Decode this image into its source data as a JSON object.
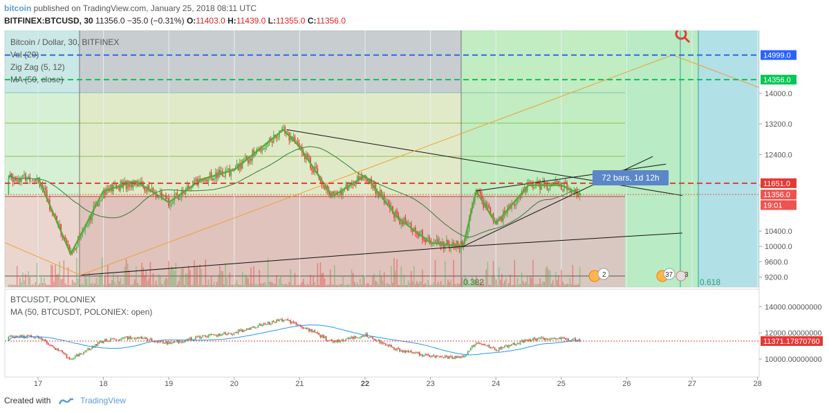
{
  "header": {
    "author": "bitcoin",
    "published_text": "published on TradingView.com, January 25, 2018 08:11 UTC",
    "symbol": "BITFINEX:BTCUSD, 30",
    "last": "11356.0",
    "change": "−35.0 (−0.31%)",
    "open_label": "O:",
    "open": "11403.0",
    "high_label": "H:",
    "high": "11439.0",
    "low_label": "L:",
    "low": "11355.0",
    "close_label": "C:",
    "close": "11356.0"
  },
  "main_pane": {
    "legend": [
      "Bitcoin / Dollar, 30, BITFINEX",
      "Vol (20)",
      "Zig Zag (5, 12)",
      "MA (50, close)"
    ],
    "price_ticks": [
      "14000.0",
      "13200.0",
      "12400.0",
      "11600.0",
      "10400.0",
      "10000.0",
      "9600.0",
      "9200.0"
    ],
    "price_tags": [
      {
        "text": "14999.0",
        "color": "#2962ff",
        "price": 14999
      },
      {
        "text": "14356.0",
        "color": "#00c853",
        "price": 14356
      },
      {
        "text": "11651.0",
        "color": "#e53935",
        "price": 11651
      },
      {
        "text": "11356.0",
        "color": "#ef5350",
        "price": 11356
      },
      {
        "text": "19:01",
        "color": "#ef5350",
        "price": 11080
      }
    ],
    "bars_label": "72 bars, 1d 12h",
    "fib_labels": [
      "0.382",
      "0.618"
    ],
    "event_badges": [
      "2",
      "3",
      "37",
      "3"
    ]
  },
  "sub_pane": {
    "legend": [
      "BTCUSDT, POLONIEX",
      "MA (50, BTCUSDT, POLONIEX: open)"
    ],
    "price_ticks": [
      "14000.00000000",
      "12000.00000000",
      "10000.00000000"
    ],
    "price_tag": "11371.17870760"
  },
  "x_axis": {
    "labels": [
      "17",
      "18",
      "19",
      "20",
      "21",
      "22",
      "23",
      "24",
      "25",
      "26",
      "27",
      "28"
    ],
    "bold_label": "22"
  },
  "footer": {
    "created_with": "Created with",
    "brand": "TradingView"
  },
  "colors": {
    "up": "#4caf50",
    "down": "#e53935",
    "zigzag": "#5fa83a",
    "ma": "#2e7d32",
    "accent": "#5b9bd5"
  },
  "chart_data": {
    "type": "line",
    "title": "Bitcoin / Dollar, 30, BITFINEX",
    "x": [
      "17",
      "17.5",
      "18",
      "18.5",
      "19",
      "19.5",
      "20",
      "20.5",
      "20.75",
      "21",
      "21.5",
      "22",
      "22.5",
      "23",
      "23.5",
      "23.7",
      "24",
      "24.5",
      "25",
      "25.3"
    ],
    "series": [
      {
        "name": "BITFINEX:BTCUSD",
        "values": [
          11800,
          9800,
          11450,
          11700,
          11150,
          11750,
          12000,
          12700,
          13050,
          12600,
          11300,
          11850,
          10750,
          10100,
          10000,
          11450,
          10600,
          11600,
          11600,
          11356
        ]
      }
    ],
    "ylim": [
      9100,
      15300
    ],
    "price_levels": [
      14999,
      14356,
      11651,
      11356
    ],
    "sub_series": [
      {
        "name": "BTCUSDT, POLONIEX",
        "values": [
          11700,
          10000,
          11400,
          11700,
          11200,
          11700,
          12000,
          12700,
          13000,
          12600,
          11300,
          11850,
          10700,
          10200,
          10100,
          11300,
          10700,
          11500,
          11600,
          11371
        ]
      }
    ],
    "sub_ylim": [
      9100,
      14700
    ]
  }
}
